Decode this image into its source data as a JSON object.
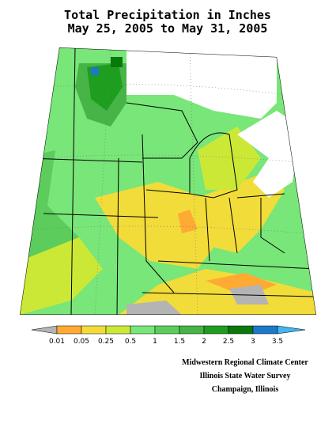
{
  "header": {
    "title_lines": [
      "Total Precipitation in Inches",
      "May 25, 2005 to May 31, 2005"
    ]
  },
  "legend": {
    "labels": [
      "0.01",
      "0.05",
      "0.25",
      "0.5",
      "1",
      "1.5",
      "2",
      "2.5",
      "3",
      "3.5"
    ],
    "colors": [
      "#b4b4b4",
      "#ffaa33",
      "#f2dc3a",
      "#cce836",
      "#78e678",
      "#5ccd5c",
      "#46b446",
      "#1e9e1e",
      "#0a780a",
      "#1e78c8",
      "#46b4f0"
    ]
  },
  "credits": [
    "Midwestern Regional Climate Center",
    "Illinois State Water Survey",
    "Champaign, Illinois"
  ]
}
